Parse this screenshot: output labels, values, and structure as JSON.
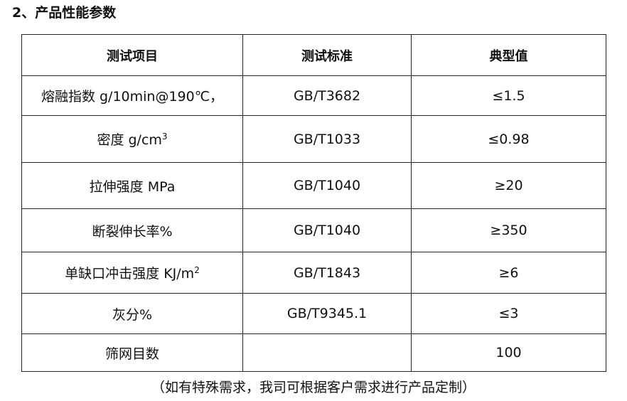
{
  "title": "2、产品性能参数",
  "table": {
    "headers": [
      "测试项目",
      "测试标准",
      "典型值"
    ],
    "rows": [
      {
        "item": "熔融指数 g/10min@190℃，",
        "sup": "",
        "standard": "GB/T3682",
        "value": "≤1.5"
      },
      {
        "item": "密度 g/cm",
        "sup": "3",
        "standard": "GB/T1033",
        "value": "≤0.98"
      },
      {
        "item": "拉伸强度 MPa",
        "sup": "",
        "standard": "GB/T1040",
        "value": "≥20"
      },
      {
        "item": "断裂伸长率%",
        "sup": "",
        "standard": "GB/T1040",
        "value": "≥350"
      },
      {
        "item": "单缺口冲击强度 KJ/m",
        "sup": "2",
        "standard": "GB/T1843",
        "value": "≥6"
      },
      {
        "item": "灰分%",
        "sup": "",
        "standard": "GB/T9345.1",
        "value": "≤3"
      },
      {
        "item": "筛网目数",
        "sup": "",
        "standard": "",
        "value": "100"
      }
    ]
  },
  "note": "（如有特殊需求，我司可根据客户需求进行产品定制）"
}
